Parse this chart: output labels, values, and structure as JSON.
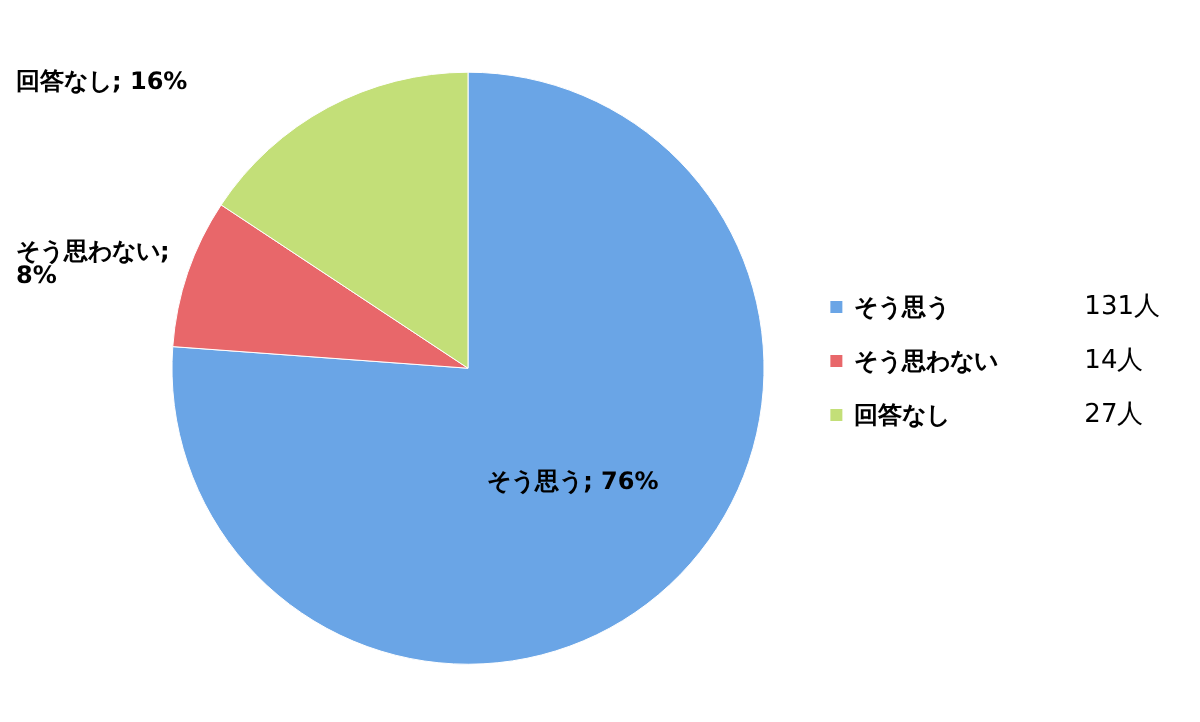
{
  "chart_data": {
    "type": "pie",
    "categories": [
      "そう思う",
      "そう思わない",
      "回答なし"
    ],
    "values": [
      131,
      14,
      27
    ],
    "value_labels": [
      "131人",
      "14人",
      "27人"
    ],
    "colors": [
      "#6aa5e6",
      "#e8676a",
      "#c3df78"
    ],
    "annotations": [
      "そう思う; 76%",
      "そう思わない; 8%",
      "回答なし; 16%"
    ],
    "legend": "right"
  }
}
